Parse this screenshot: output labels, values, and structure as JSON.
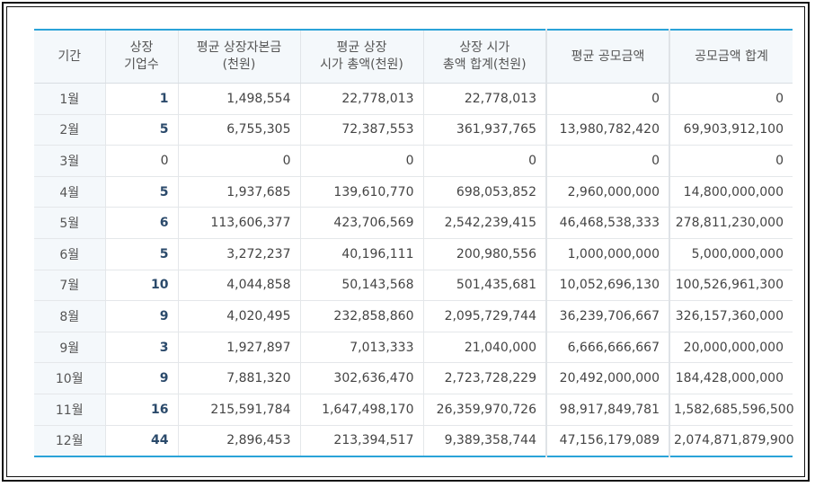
{
  "table": {
    "headers": [
      "기간",
      "상장\n기업수",
      "평균 상장자본금\n(천원)",
      "평균 상장\n시가 총액(천원)",
      "상장 시가\n총액 합계(천원)",
      "평균 공모금액",
      "공모금액 합계"
    ],
    "rows": [
      {
        "month": "1월",
        "count": "1",
        "avg_capital": "1,498,554",
        "avg_market_cap": "22,778,013",
        "total_market_cap": "22,778,013",
        "avg_offering": "0",
        "total_offering": "0"
      },
      {
        "month": "2월",
        "count": "5",
        "avg_capital": "6,755,305",
        "avg_market_cap": "72,387,553",
        "total_market_cap": "361,937,765",
        "avg_offering": "13,980,782,420",
        "total_offering": "69,903,912,100"
      },
      {
        "month": "3월",
        "count": "0",
        "avg_capital": "0",
        "avg_market_cap": "0",
        "total_market_cap": "0",
        "avg_offering": "0",
        "total_offering": "0"
      },
      {
        "month": "4월",
        "count": "5",
        "avg_capital": "1,937,685",
        "avg_market_cap": "139,610,770",
        "total_market_cap": "698,053,852",
        "avg_offering": "2,960,000,000",
        "total_offering": "14,800,000,000"
      },
      {
        "month": "5월",
        "count": "6",
        "avg_capital": "113,606,377",
        "avg_market_cap": "423,706,569",
        "total_market_cap": "2,542,239,415",
        "avg_offering": "46,468,538,333",
        "total_offering": "278,811,230,000"
      },
      {
        "month": "6월",
        "count": "5",
        "avg_capital": "3,272,237",
        "avg_market_cap": "40,196,111",
        "total_market_cap": "200,980,556",
        "avg_offering": "1,000,000,000",
        "total_offering": "5,000,000,000"
      },
      {
        "month": "7월",
        "count": "10",
        "avg_capital": "4,044,858",
        "avg_market_cap": "50,143,568",
        "total_market_cap": "501,435,681",
        "avg_offering": "10,052,696,130",
        "total_offering": "100,526,961,300"
      },
      {
        "month": "8월",
        "count": "9",
        "avg_capital": "4,020,495",
        "avg_market_cap": "232,858,860",
        "total_market_cap": "2,095,729,744",
        "avg_offering": "36,239,706,667",
        "total_offering": "326,157,360,000"
      },
      {
        "month": "9월",
        "count": "3",
        "avg_capital": "1,927,897",
        "avg_market_cap": "7,013,333",
        "total_market_cap": "21,040,000",
        "avg_offering": "6,666,666,667",
        "total_offering": "20,000,000,000"
      },
      {
        "month": "10월",
        "count": "9",
        "avg_capital": "7,881,320",
        "avg_market_cap": "302,636,470",
        "total_market_cap": "2,723,728,229",
        "avg_offering": "20,492,000,000",
        "total_offering": "184,428,000,000"
      },
      {
        "month": "11월",
        "count": "16",
        "avg_capital": "215,591,784",
        "avg_market_cap": "1,647,498,170",
        "total_market_cap": "26,359,970,726",
        "avg_offering": "98,917,849,781",
        "total_offering": "1,582,685,596,500"
      },
      {
        "month": "12월",
        "count": "44",
        "avg_capital": "2,896,453",
        "avg_market_cap": "213,394,517",
        "total_market_cap": "9,389,358,744",
        "avg_offering": "47,156,179,089",
        "total_offering": "2,074,871,879,900"
      }
    ]
  },
  "colors": {
    "accent_border": "#2aa3d8",
    "header_background": "#f4f8fb",
    "count_text": "#2b4a6b"
  }
}
